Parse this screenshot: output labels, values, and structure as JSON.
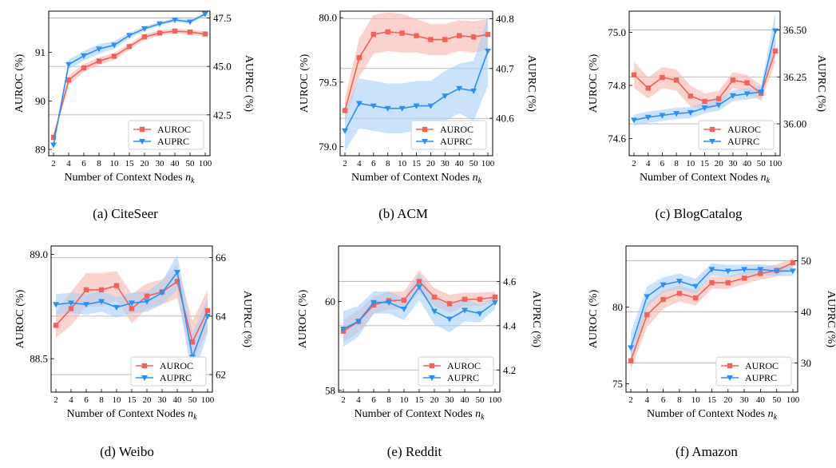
{
  "colors": {
    "auroc": "#f0625a",
    "auroc_band": "#f7b6b0",
    "auprc": "#2f8ff0",
    "auprc_band": "#a9d1f7"
  },
  "shared": {
    "xlabel_text": "Number of Context Nodes ",
    "xlabel_var": "n",
    "xlabel_sub": "k",
    "ylabel_left": "AUROC (%)",
    "ylabel_right": "AUPRC (%)",
    "legend": [
      "AUROC",
      "AUPRC"
    ]
  },
  "chart_data": [
    {
      "type": "line",
      "caption": "(a)  CiteSeer",
      "categories": [
        "2",
        "4",
        "6",
        "8",
        "10",
        "15",
        "20",
        "30",
        "40",
        "50",
        "100"
      ],
      "yleft": {
        "ticks": [
          89,
          90,
          91
        ],
        "range": [
          88.87,
          91.85
        ]
      },
      "yright": {
        "ticks": [
          "42.5",
          "45.0",
          "47.5"
        ],
        "tickvals": [
          42.5,
          45.0,
          47.5
        ],
        "range": [
          40.39,
          47.85
        ]
      },
      "series": [
        {
          "name": "AUROC",
          "axis": "left",
          "values": [
            89.25,
            90.43,
            90.68,
            90.82,
            90.92,
            91.12,
            91.32,
            91.4,
            91.44,
            91.42,
            91.38
          ],
          "band": [
            0.03,
            0.1,
            0.08,
            0.08,
            0.07,
            0.06,
            0.06,
            0.05,
            0.05,
            0.05,
            0.05
          ]
        },
        {
          "name": "AUPRC",
          "axis": "right",
          "values": [
            40.95,
            45.1,
            45.55,
            45.9,
            46.1,
            46.6,
            46.95,
            47.2,
            47.4,
            47.3,
            47.7
          ],
          "band": [
            0.1,
            0.25,
            0.25,
            0.25,
            0.2,
            0.15,
            0.12,
            0.1,
            0.1,
            0.1,
            0.1
          ]
        }
      ]
    },
    {
      "type": "line",
      "caption": "(b)  ACM",
      "categories": [
        "2",
        "4",
        "6",
        "8",
        "10",
        "15",
        "20",
        "30",
        "40",
        "50",
        "100"
      ],
      "yleft": {
        "ticks": [
          "79.0",
          "79.5",
          "80.0"
        ],
        "tickvals": [
          79.0,
          79.5,
          80.0
        ],
        "range": [
          78.93,
          80.05
        ]
      },
      "yright": {
        "ticks": [
          "40.6",
          "40.7",
          "40.8"
        ],
        "tickvals": [
          40.6,
          40.7,
          40.8
        ],
        "range": [
          40.525,
          40.815
        ]
      },
      "series": [
        {
          "name": "AUROC",
          "axis": "left",
          "values": [
            79.28,
            79.69,
            79.87,
            79.89,
            79.88,
            79.86,
            79.83,
            79.83,
            79.86,
            79.85,
            79.87
          ],
          "band": [
            0.1,
            0.15,
            0.15,
            0.15,
            0.15,
            0.13,
            0.12,
            0.12,
            0.12,
            0.12,
            0.12
          ]
        },
        {
          "name": "AUPRC",
          "axis": "right",
          "values": [
            40.575,
            40.63,
            40.625,
            40.62,
            40.62,
            40.625,
            40.625,
            40.645,
            40.66,
            40.655,
            40.735
          ],
          "band": [
            0.04,
            0.05,
            0.05,
            0.05,
            0.05,
            0.05,
            0.05,
            0.05,
            0.05,
            0.06,
            0.07
          ]
        }
      ]
    },
    {
      "type": "line",
      "caption": "(c)  BlogCatalog",
      "categories": [
        "2",
        "4",
        "6",
        "8",
        "10",
        "15",
        "20",
        "30",
        "40",
        "50",
        "100"
      ],
      "yleft": {
        "ticks": [
          "74.6",
          "74.8",
          "75.0"
        ],
        "tickvals": [
          74.6,
          74.8,
          75.0
        ],
        "range": [
          74.535,
          75.08
        ]
      },
      "yright": {
        "ticks": [
          "36.00",
          "36.25",
          "36.50"
        ],
        "tickvals": [
          36.0,
          36.25,
          36.5
        ],
        "range": [
          35.83,
          36.6
        ]
      },
      "series": [
        {
          "name": "AUROC",
          "axis": "left",
          "values": [
            74.84,
            74.79,
            74.83,
            74.82,
            74.76,
            74.74,
            74.75,
            74.82,
            74.81,
            74.77,
            74.93
          ],
          "band": [
            0.05,
            0.04,
            0.04,
            0.04,
            0.04,
            0.03,
            0.03,
            0.03,
            0.03,
            0.03,
            0.04
          ]
        },
        {
          "name": "AUPRC",
          "axis": "right",
          "values": [
            36.02,
            36.035,
            36.045,
            36.055,
            36.06,
            36.085,
            36.1,
            36.15,
            36.16,
            36.17,
            36.495
          ],
          "band": [
            0.03,
            0.03,
            0.03,
            0.03,
            0.03,
            0.03,
            0.03,
            0.03,
            0.03,
            0.03,
            0.1
          ]
        }
      ]
    },
    {
      "type": "line",
      "caption": "(d)  Weibo",
      "categories": [
        "2",
        "4",
        "6",
        "8",
        "10",
        "15",
        "20",
        "30",
        "40",
        "50",
        "100"
      ],
      "yleft": {
        "ticks": [
          "88.5",
          "89.0"
        ],
        "tickvals": [
          88.5,
          89.0
        ],
        "range": [
          88.34,
          89.04
        ]
      },
      "yright": {
        "ticks": [
          "62",
          "64",
          "66"
        ],
        "tickvals": [
          62,
          64,
          66
        ],
        "range": [
          61.4,
          66.4
        ]
      },
      "series": [
        {
          "name": "AUROC",
          "axis": "left",
          "values": [
            88.66,
            88.74,
            88.83,
            88.83,
            88.85,
            88.74,
            88.8,
            88.82,
            88.87,
            88.58,
            88.73
          ],
          "band": [
            0.06,
            0.08,
            0.08,
            0.08,
            0.07,
            0.07,
            0.06,
            0.06,
            0.08,
            0.1,
            0.1
          ]
        },
        {
          "name": "AUPRC",
          "axis": "right",
          "values": [
            64.4,
            64.45,
            64.4,
            64.5,
            64.3,
            64.45,
            64.5,
            64.8,
            65.5,
            62.6,
            64.0
          ],
          "band": [
            0.35,
            0.35,
            0.35,
            0.35,
            0.35,
            0.35,
            0.35,
            0.4,
            0.6,
            0.8,
            0.6
          ]
        }
      ]
    },
    {
      "type": "line",
      "caption": "(e)  Reddit",
      "categories": [
        "2",
        "4",
        "6",
        "8",
        "10",
        "15",
        "20",
        "30",
        "40",
        "50",
        "100"
      ],
      "yleft": {
        "ticks": [
          58,
          60
        ],
        "range": [
          57.96,
          61.25
        ]
      },
      "yright": {
        "ticks": [
          "4.2",
          "4.4",
          "4.6"
        ],
        "tickvals": [
          4.2,
          4.4,
          4.6
        ],
        "range": [
          4.1,
          4.76
        ]
      },
      "series": [
        {
          "name": "AUROC",
          "axis": "left",
          "values": [
            59.33,
            59.55,
            59.92,
            60.02,
            60.03,
            60.45,
            60.1,
            59.95,
            60.05,
            60.05,
            60.1
          ],
          "band": [
            0.25,
            0.25,
            0.2,
            0.2,
            0.2,
            0.25,
            0.2,
            0.2,
            0.15,
            0.15,
            0.12
          ]
        },
        {
          "name": "AUPRC",
          "axis": "right",
          "values": [
            4.385,
            4.42,
            4.505,
            4.505,
            4.475,
            4.575,
            4.465,
            4.43,
            4.47,
            4.455,
            4.505
          ],
          "band": [
            0.08,
            0.07,
            0.05,
            0.05,
            0.05,
            0.06,
            0.06,
            0.06,
            0.05,
            0.04,
            0.03
          ]
        }
      ]
    },
    {
      "type": "line",
      "caption": "(f)  Amazon",
      "categories": [
        "2",
        "4",
        "6",
        "8",
        "10",
        "15",
        "20",
        "30",
        "40",
        "50",
        "100"
      ],
      "yleft": {
        "ticks": [
          75,
          80
        ],
        "range": [
          74.45,
          84.0
        ]
      },
      "yright": {
        "ticks": [
          30,
          40,
          50
        ],
        "tickvals": [
          30,
          40,
          50
        ],
        "range": [
          24.3,
          52.9
        ]
      },
      "series": [
        {
          "name": "AUROC",
          "axis": "left",
          "values": [
            76.5,
            79.5,
            80.5,
            80.9,
            80.6,
            81.6,
            81.6,
            81.9,
            82.2,
            82.4,
            82.9
          ],
          "band": [
            0.6,
            0.8,
            0.6,
            0.5,
            0.5,
            0.4,
            0.4,
            0.4,
            0.4,
            0.4,
            0.3
          ]
        },
        {
          "name": "AUPRC",
          "axis": "right",
          "values": [
            33.0,
            43.0,
            45.3,
            46.0,
            45.0,
            48.3,
            48.0,
            48.3,
            48.3,
            48.0,
            48.0
          ],
          "band": [
            3.0,
            2.0,
            1.5,
            1.5,
            1.5,
            1.2,
            1.2,
            1.0,
            1.0,
            1.0,
            1.0
          ]
        }
      ]
    }
  ]
}
